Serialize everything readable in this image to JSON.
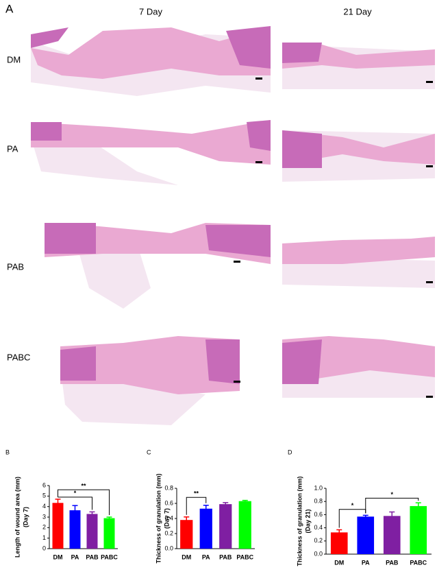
{
  "panel_a": {
    "label": "A",
    "columns": [
      "7 Day",
      "21 Day"
    ],
    "rows": [
      "DM",
      "PA",
      "PAB",
      "PABC"
    ]
  },
  "chart_data": [
    {
      "type": "bar",
      "panel_label": "B",
      "y_label": [
        "Length of wound area (mm)",
        "(Day 7)"
      ],
      "categories": [
        "DM",
        "PA",
        "PAB",
        "PABC"
      ],
      "values": [
        4.35,
        3.65,
        3.3,
        2.9
      ],
      "errors": [
        0.35,
        0.45,
        0.2,
        0.1
      ],
      "colors": [
        "#ff0000",
        "#0000ff",
        "#7f1fa2",
        "#00ff00"
      ],
      "ylim": [
        0,
        6
      ],
      "yticks": [
        0,
        1,
        2,
        3,
        4,
        5,
        6
      ],
      "annotations": [
        {
          "text": "**",
          "from": 0,
          "to": 3,
          "y": 5.6
        },
        {
          "text": "*",
          "from": 0,
          "to": 2,
          "y": 4.9
        }
      ]
    },
    {
      "type": "bar",
      "panel_label": "C",
      "y_label": [
        "Thickness of granulation (mm)",
        "(Day 7)"
      ],
      "categories": [
        "DM",
        "PA",
        "PAB",
        "PABC"
      ],
      "values": [
        0.38,
        0.53,
        0.59,
        0.63
      ],
      "errors": [
        0.04,
        0.045,
        0.02,
        0.01
      ],
      "colors": [
        "#ff0000",
        "#0000ff",
        "#7f1fa2",
        "#00ff00"
      ],
      "ylim": [
        0,
        0.8
      ],
      "yticks": [
        {
          "value": 0,
          "label": "0.0"
        },
        0.2,
        0.4,
        0.6,
        0.8
      ],
      "annotations": [
        {
          "text": "**",
          "from": 0,
          "to": 1,
          "y": 0.68
        }
      ]
    },
    {
      "type": "bar",
      "panel_label": "D",
      "y_label": [
        "Thickness of granulation (mm)",
        "(Day 21)"
      ],
      "categories": [
        "DM",
        "PA",
        "PAB",
        "PABC"
      ],
      "values": [
        0.33,
        0.57,
        0.58,
        0.73
      ],
      "errors": [
        0.04,
        0.02,
        0.06,
        0.05
      ],
      "colors": [
        "#ff0000",
        "#0000ff",
        "#7f1fa2",
        "#00ff00"
      ],
      "ylim": [
        0,
        1
      ],
      "yticks": [
        {
          "value": 0,
          "label": "0.0"
        },
        0.2,
        0.4,
        0.6,
        0.8,
        {
          "value": 1,
          "label": "1.0"
        }
      ],
      "annotations": [
        {
          "text": "*",
          "from": 0,
          "to": 1,
          "y": 0.68
        },
        {
          "text": "*",
          "from": 1,
          "to": 3,
          "y": 0.85
        }
      ]
    }
  ]
}
